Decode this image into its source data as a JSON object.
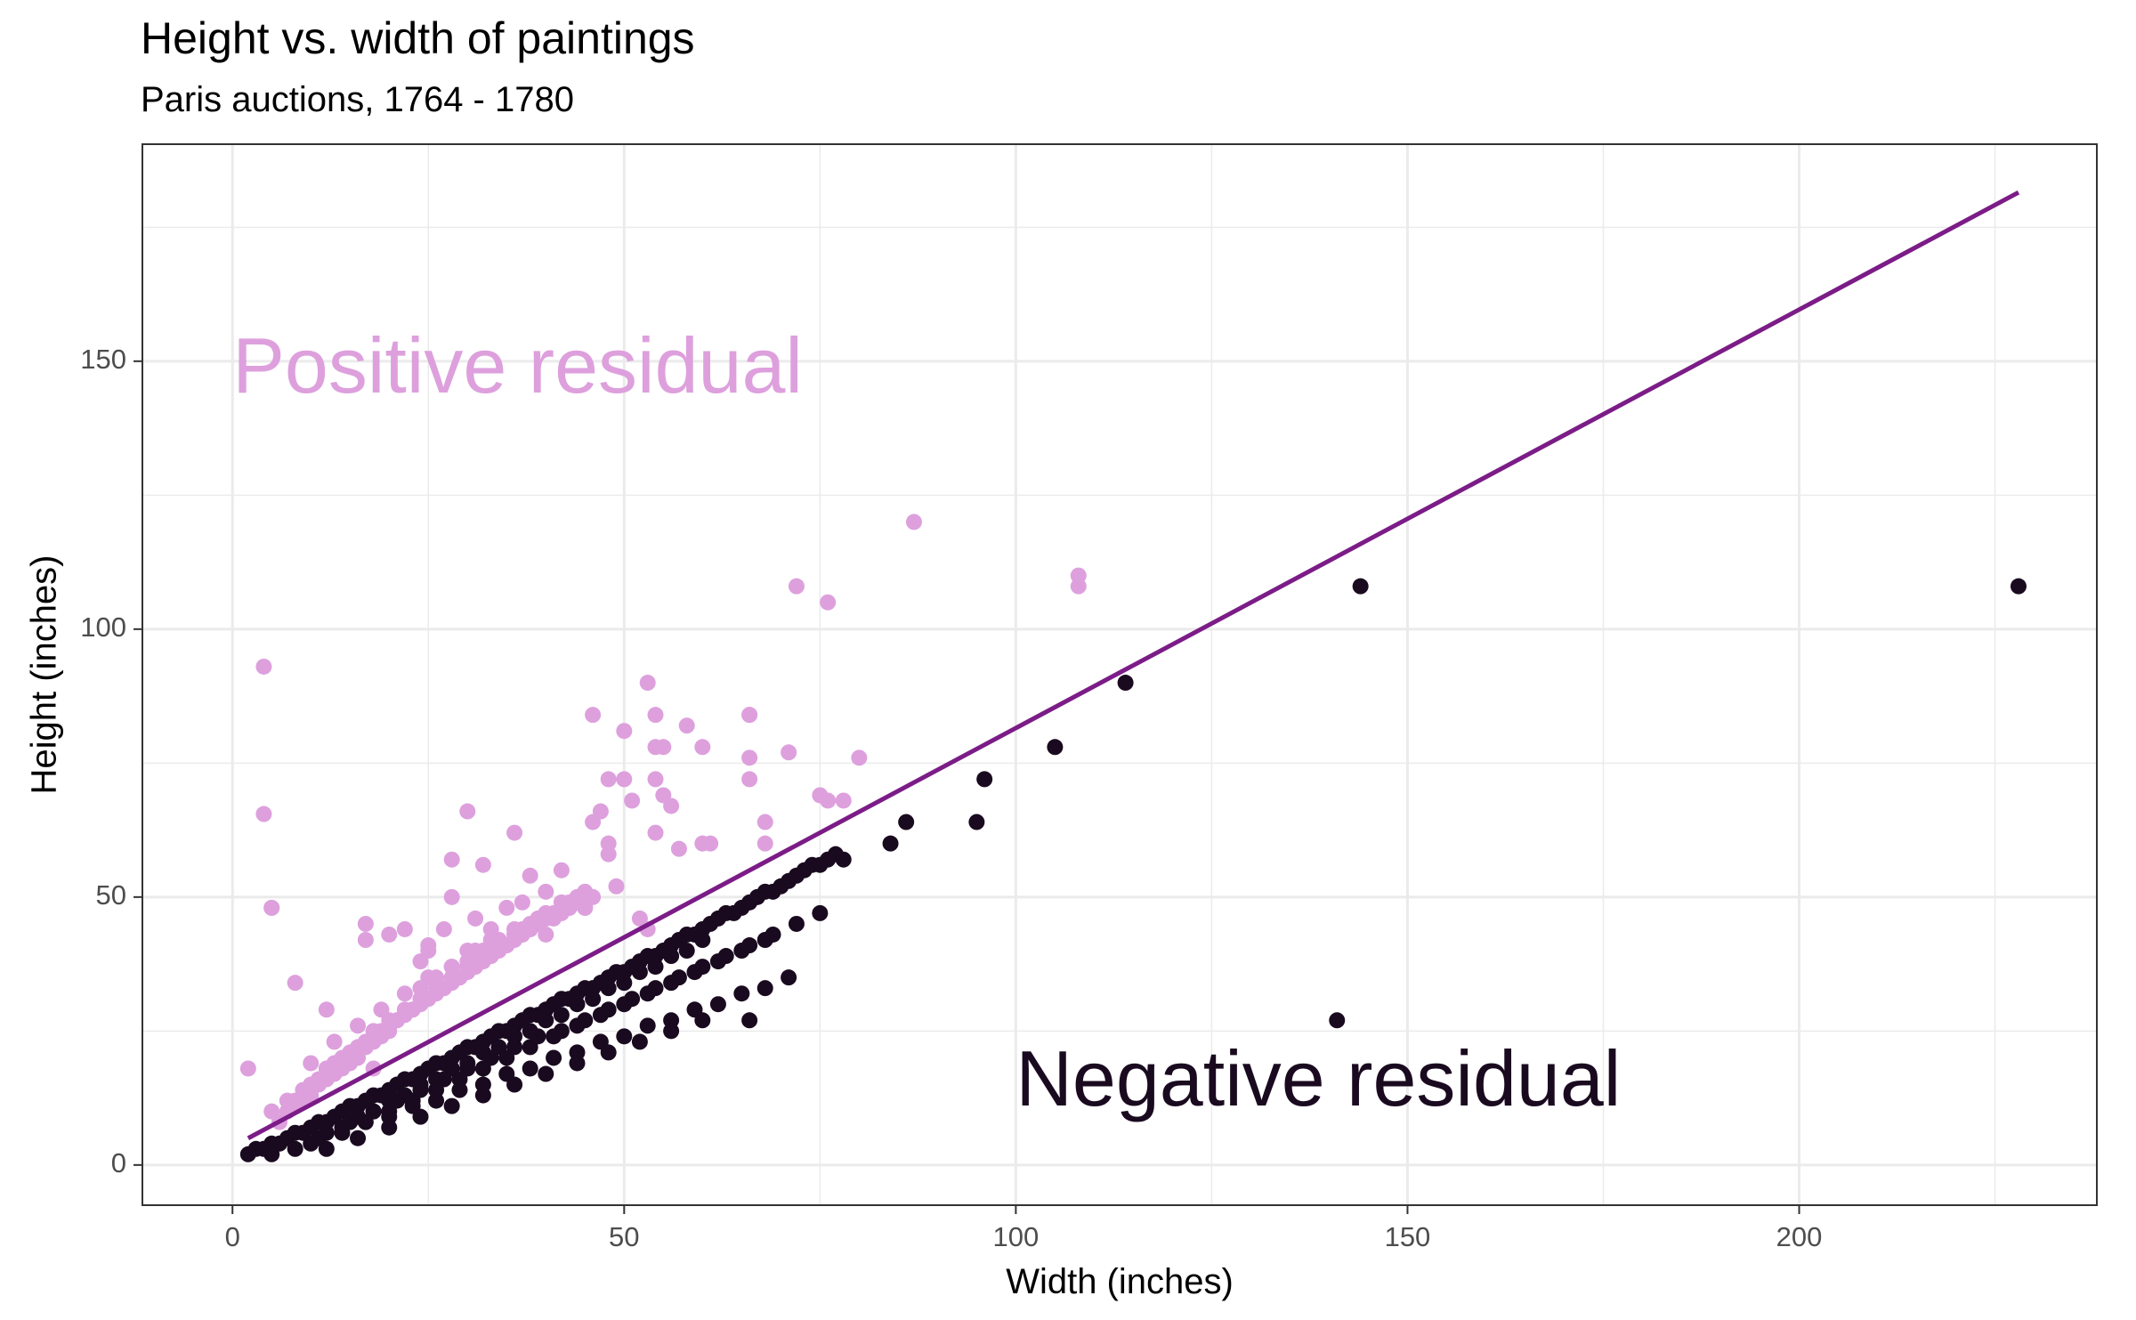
{
  "chart_data": {
    "type": "scatter",
    "title": "Height vs. width of paintings",
    "subtitle": "Paris auctions, 1764 - 1780",
    "xlabel": "Width (inches)",
    "ylabel": "Height (inches)",
    "xlim": [
      -11.5,
      238
    ],
    "ylim": [
      -7.5,
      190.5
    ],
    "x_ticks": [
      0,
      50,
      100,
      150,
      200
    ],
    "y_ticks": [
      0,
      50,
      100,
      150
    ],
    "grid": true,
    "colors": {
      "positive": "#DDA0DD",
      "negative": "#1A0A1F",
      "line": "#7B1C87",
      "grid": "#EBEBEB",
      "panel_border": "#333333"
    },
    "annotations": [
      {
        "text": "Positive residual",
        "x": 0,
        "y": 148,
        "color": "#DDA0DD"
      },
      {
        "text": "Negative residual",
        "x": 100,
        "y": 15,
        "color": "#1A0A1F"
      }
    ],
    "regression_line": {
      "x": [
        2,
        228
      ],
      "y": [
        5,
        181.5
      ]
    },
    "series": [
      {
        "group": "positive",
        "x": [
          2,
          4,
          4,
          5,
          5,
          8,
          12,
          17,
          17,
          18,
          20,
          22,
          24,
          25,
          25,
          27,
          28,
          28,
          30,
          31,
          32,
          33,
          35,
          36,
          37,
          38,
          39,
          40,
          40,
          42,
          43,
          45,
          45,
          46,
          46,
          47,
          48,
          48,
          48,
          49,
          50,
          50,
          51,
          52,
          53,
          53,
          54,
          54,
          54,
          54,
          55,
          55,
          56,
          57,
          58,
          60,
          60,
          61,
          66,
          66,
          66,
          66,
          68,
          68,
          71,
          72,
          75,
          76,
          76,
          78,
          80,
          87,
          108,
          108,
          6,
          7,
          8,
          9,
          10,
          11,
          12,
          13,
          14,
          15,
          16,
          17,
          18,
          19,
          20,
          21,
          22,
          23,
          24,
          25,
          26,
          27,
          28,
          29,
          30,
          31,
          32,
          33,
          34,
          35,
          36,
          37,
          38,
          39,
          40,
          41,
          42,
          43,
          44,
          45,
          8,
          10,
          12,
          14,
          16,
          18,
          20,
          22,
          24,
          26,
          28,
          30,
          32,
          34,
          36,
          38,
          40,
          42,
          44,
          46,
          5,
          7,
          9,
          11,
          13,
          15,
          17,
          19,
          21,
          23,
          25,
          27,
          29,
          31,
          33,
          35,
          37,
          39,
          41,
          10,
          13,
          16,
          19,
          22,
          25,
          28,
          31,
          34,
          37,
          40,
          43,
          24,
          26,
          28,
          30,
          32,
          34,
          36,
          38,
          40,
          42,
          30,
          33,
          36,
          39,
          42
        ],
        "y": [
          18,
          65.5,
          93,
          48,
          48,
          34,
          29,
          45,
          42,
          18,
          43,
          44,
          38,
          41,
          40,
          44,
          57,
          50,
          66,
          46,
          56,
          44,
          48,
          62,
          49,
          54,
          45,
          51,
          43,
          55,
          49,
          48,
          48,
          84,
          64,
          66,
          72,
          60,
          58,
          52,
          81,
          72,
          68,
          46,
          44,
          90,
          84,
          78,
          72,
          62,
          78,
          69,
          67,
          59,
          82,
          78,
          60,
          60,
          84,
          84,
          76,
          72,
          64,
          60,
          77,
          108,
          69,
          105,
          68,
          68,
          76,
          120,
          110,
          108,
          8,
          10,
          11,
          12,
          13,
          15,
          16,
          17,
          18,
          19,
          20,
          22,
          23,
          24,
          25,
          27,
          28,
          29,
          30,
          31,
          32,
          33,
          34,
          35,
          36,
          37,
          38,
          39,
          40,
          41,
          42,
          43,
          44,
          45,
          46,
          47,
          48,
          48,
          50,
          51,
          12,
          15,
          18,
          20,
          22,
          25,
          27,
          29,
          31,
          33,
          35,
          37,
          39,
          41,
          43,
          44,
          46,
          47,
          49,
          50,
          10,
          12,
          14,
          16,
          19,
          21,
          23,
          25,
          27,
          29,
          31,
          33,
          35,
          37,
          39,
          41,
          43,
          45,
          46,
          19,
          23,
          26,
          29,
          32,
          35,
          37,
          40,
          42,
          44,
          46,
          48,
          33,
          35,
          37,
          38,
          40,
          42,
          43,
          45,
          47,
          49,
          40,
          42,
          44,
          46,
          48
        ]
      },
      {
        "group": "negative",
        "x": [
          2,
          3,
          4,
          5,
          6,
          7,
          8,
          9,
          10,
          11,
          12,
          13,
          14,
          15,
          16,
          17,
          18,
          19,
          20,
          21,
          22,
          23,
          24,
          25,
          26,
          27,
          28,
          29,
          30,
          31,
          32,
          33,
          34,
          35,
          36,
          37,
          38,
          39,
          40,
          41,
          42,
          43,
          44,
          45,
          46,
          47,
          48,
          49,
          50,
          51,
          52,
          53,
          54,
          55,
          56,
          57,
          58,
          59,
          60,
          61,
          62,
          63,
          64,
          65,
          66,
          67,
          68,
          69,
          70,
          71,
          72,
          73,
          74,
          75,
          76,
          77,
          78,
          84,
          86,
          95,
          96,
          105,
          114,
          144,
          141,
          228,
          66,
          10,
          12,
          14,
          16,
          18,
          20,
          22,
          24,
          26,
          28,
          30,
          32,
          34,
          36,
          38,
          40,
          42,
          44,
          46,
          48,
          50,
          52,
          54,
          56,
          58,
          60,
          5,
          8,
          11,
          14,
          17,
          20,
          23,
          26,
          29,
          32,
          35,
          38,
          41,
          44,
          47,
          50,
          53,
          56,
          59,
          62,
          65,
          68,
          71,
          15,
          18,
          21,
          24,
          27,
          30,
          33,
          36,
          39,
          42,
          45,
          48,
          51,
          54,
          57,
          60,
          63,
          66,
          69,
          72,
          75,
          20,
          23,
          26,
          29,
          32,
          35,
          38,
          41,
          44,
          47,
          50,
          53,
          56,
          59,
          62,
          65,
          68,
          12,
          16,
          20,
          24,
          28,
          32,
          36,
          40,
          44,
          48,
          52,
          56,
          60
        ],
        "y": [
          2,
          3,
          3,
          4,
          4,
          5,
          6,
          6,
          7,
          8,
          8,
          9,
          10,
          11,
          11,
          12,
          13,
          13,
          14,
          15,
          16,
          16,
          17,
          18,
          19,
          19,
          20,
          21,
          22,
          22,
          23,
          24,
          25,
          25,
          26,
          27,
          28,
          28,
          29,
          30,
          31,
          31,
          32,
          33,
          33,
          34,
          35,
          36,
          36,
          37,
          38,
          39,
          39,
          40,
          41,
          42,
          43,
          43,
          44,
          45,
          46,
          47,
          47,
          48,
          49,
          50,
          51,
          51,
          52,
          53,
          54,
          55,
          56,
          56,
          57,
          58,
          57,
          60,
          64,
          64,
          72,
          78,
          90,
          108,
          27,
          108,
          27,
          4,
          6,
          7,
          9,
          10,
          12,
          13,
          15,
          16,
          18,
          19,
          21,
          22,
          24,
          25,
          27,
          28,
          30,
          31,
          33,
          34,
          36,
          37,
          39,
          40,
          42,
          2,
          3,
          5,
          6,
          8,
          9,
          11,
          12,
          14,
          15,
          17,
          18,
          20,
          21,
          23,
          24,
          26,
          27,
          29,
          30,
          32,
          33,
          35,
          8,
          10,
          12,
          14,
          16,
          18,
          20,
          22,
          24,
          25,
          27,
          29,
          31,
          33,
          35,
          37,
          39,
          41,
          43,
          45,
          47,
          10,
          12,
          14,
          16,
          18,
          20,
          22,
          24,
          26,
          28,
          30,
          32,
          34,
          36,
          38,
          40,
          42,
          3,
          5,
          7,
          9,
          11,
          13,
          15,
          17,
          19,
          21,
          23,
          25,
          27
        ]
      }
    ]
  }
}
